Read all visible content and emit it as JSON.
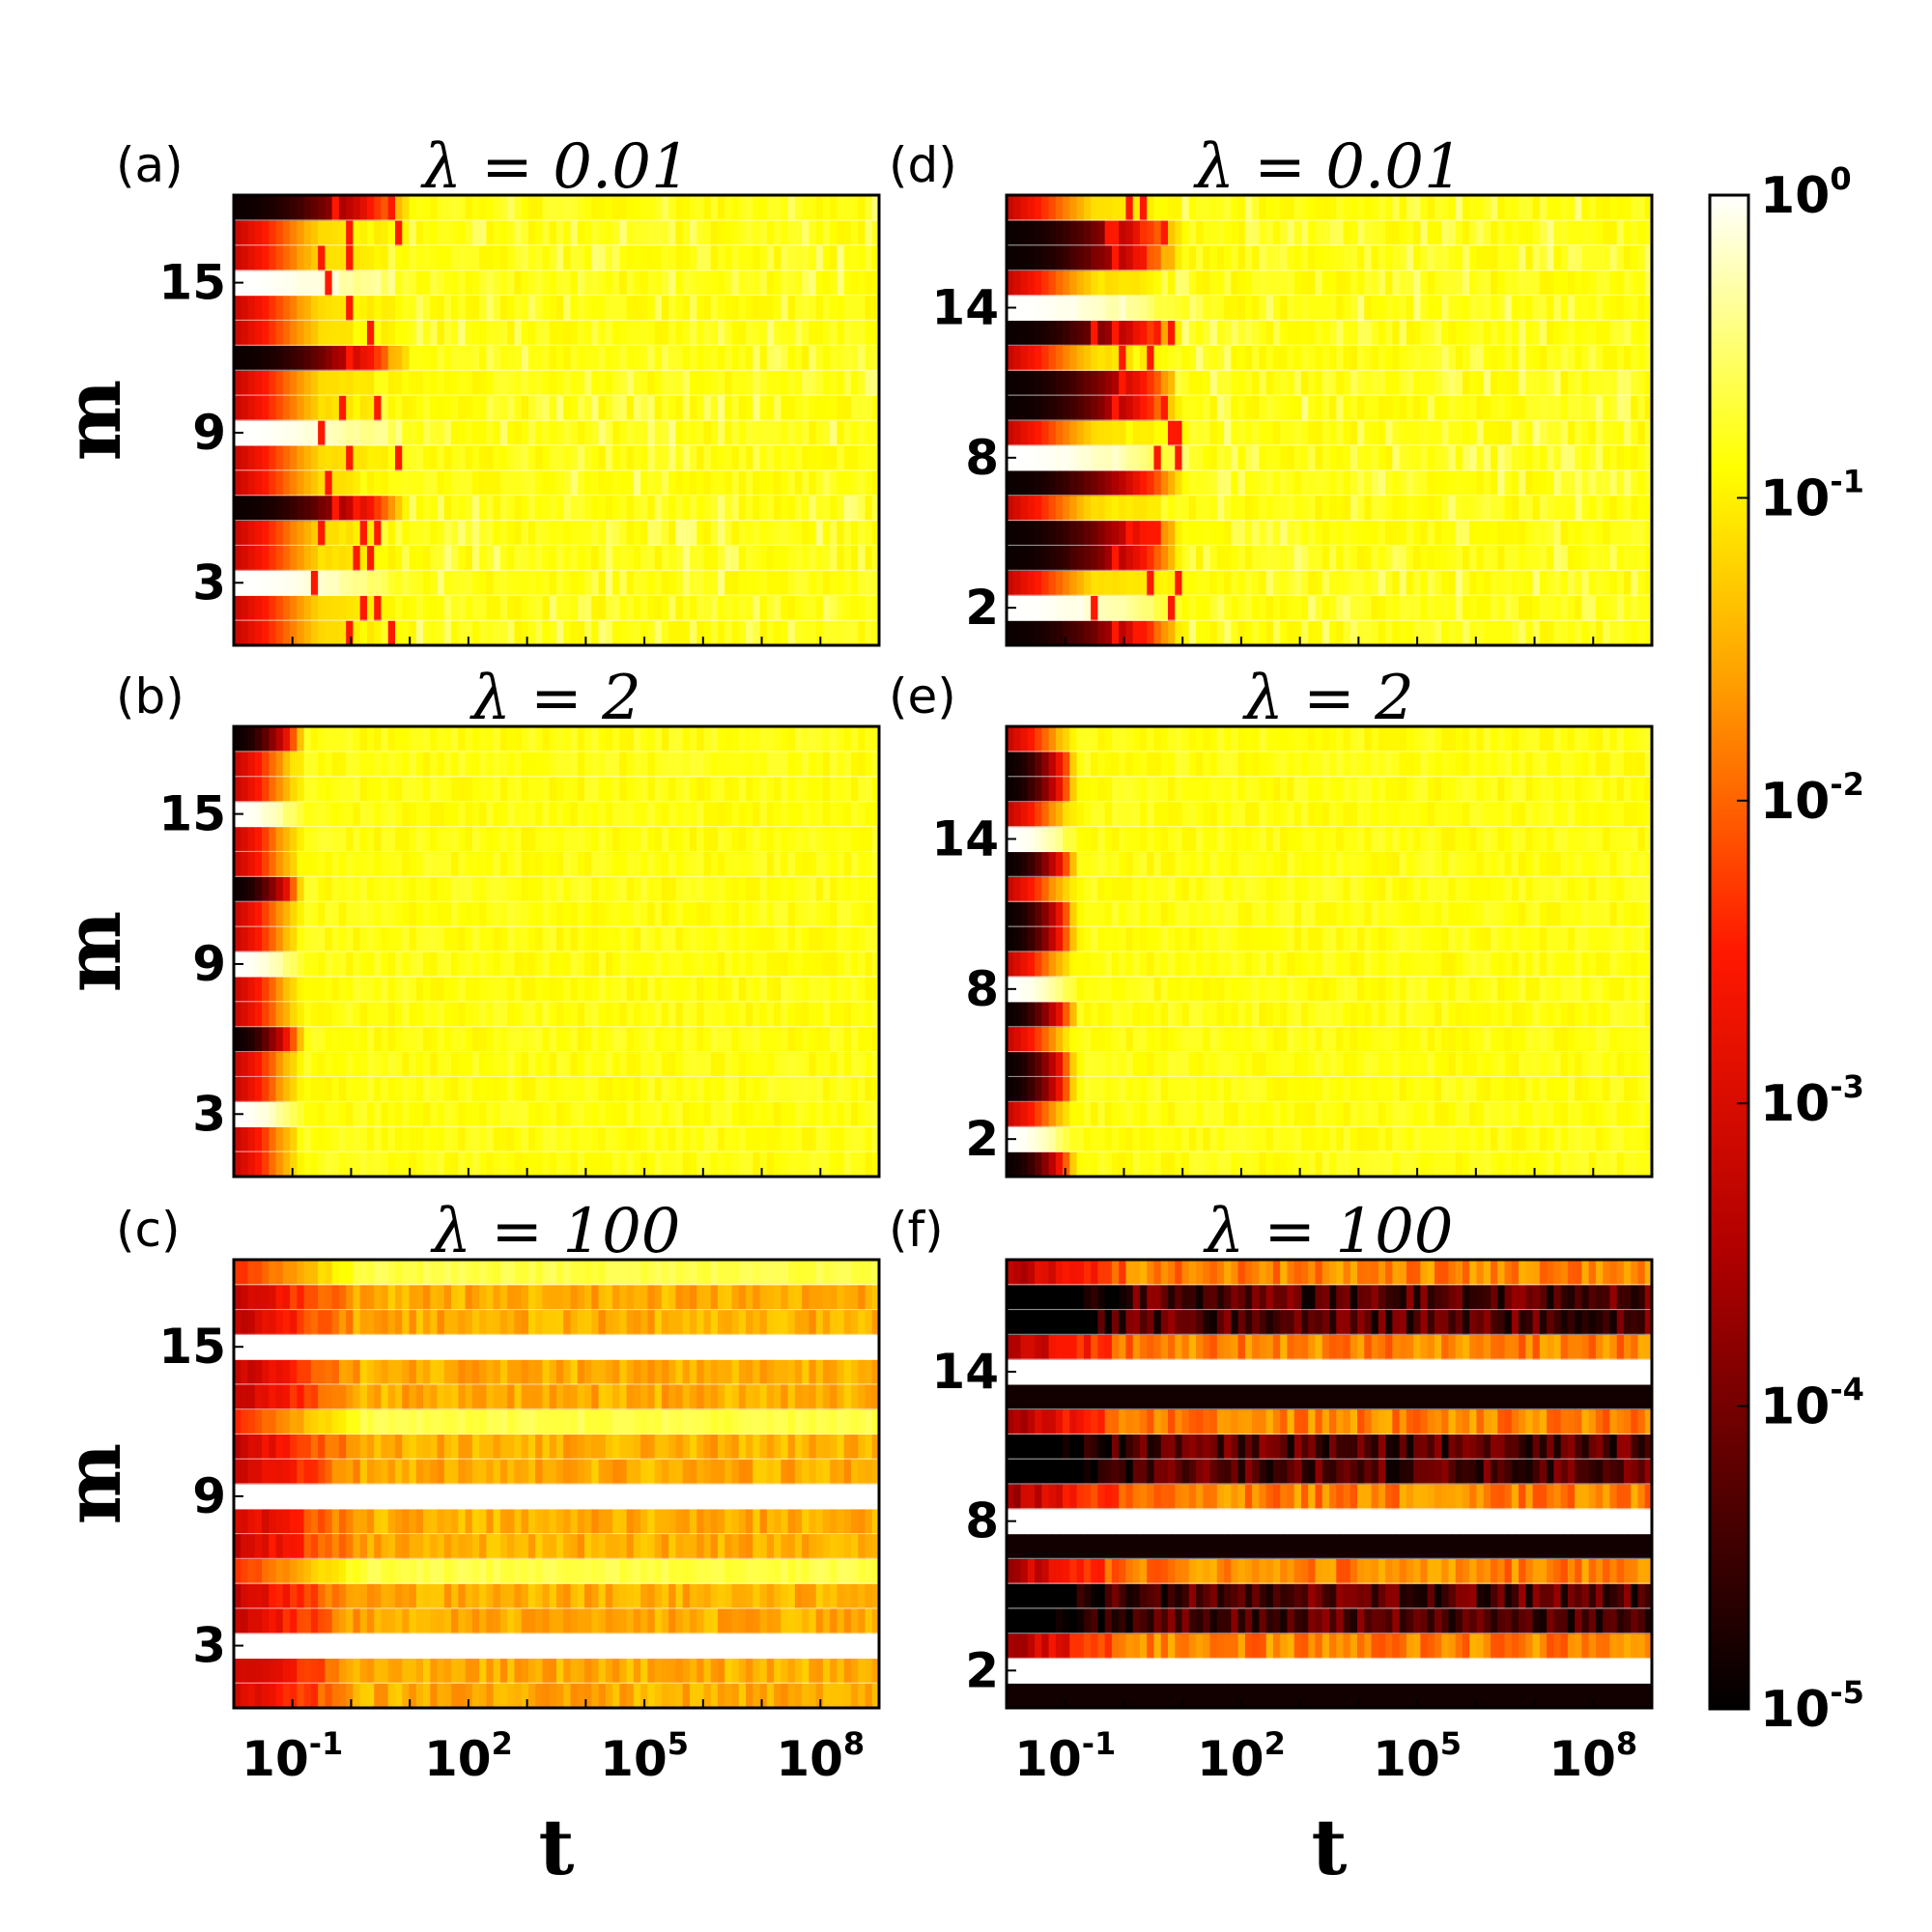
{
  "chart_data": [
    {
      "type": "heatmap",
      "panel": "(a)",
      "title": "λ = 0.01",
      "lambda": 0.01,
      "xlabel": "t",
      "ylabel": "m",
      "x_scale": "log",
      "x_range": [
        0.01,
        1000000000
      ],
      "x_ticks": [
        {
          "base": "10",
          "exp": "-1"
        },
        {
          "base": "10",
          "exp": "2"
        },
        {
          "base": "10",
          "exp": "5"
        },
        {
          "base": "10",
          "exp": "8"
        }
      ],
      "x_ticks_shown": false,
      "m_range": [
        1,
        18
      ],
      "y_ticks": [
        "15",
        "9",
        "3"
      ],
      "early_rows": {
        "dark": [
          6,
          12,
          18
        ],
        "white": [
          3,
          9,
          15
        ]
      },
      "transient_end_decades": 3,
      "late_state": "uniform yellow ~10^-1 with flickering columns"
    },
    {
      "type": "heatmap",
      "panel": "(b)",
      "title": "λ = 2",
      "lambda": 2,
      "xlabel": "t",
      "ylabel": "m",
      "x_scale": "log",
      "x_range": [
        0.01,
        1000000000
      ],
      "x_ticks_shown": false,
      "m_range": [
        1,
        18
      ],
      "y_ticks": [
        "15",
        "9",
        "3"
      ],
      "early_rows": {
        "dark": [
          6,
          12,
          18
        ],
        "white": [
          3,
          9,
          15
        ]
      },
      "transient_end_decades": 1.2,
      "late_state": "uniform pale yellow ~10^-1"
    },
    {
      "type": "heatmap",
      "panel": "(c)",
      "title": "λ = 100",
      "lambda": 100,
      "xlabel": "t",
      "ylabel": "m",
      "x_scale": "log",
      "x_range": [
        0.01,
        1000000000
      ],
      "x_ticks": [
        {
          "base": "10",
          "exp": "-1"
        },
        {
          "base": "10",
          "exp": "2"
        },
        {
          "base": "10",
          "exp": "5"
        },
        {
          "base": "10",
          "exp": "8"
        }
      ],
      "x_ticks_shown": true,
      "m_range": [
        1,
        18
      ],
      "y_ticks": [
        "15",
        "9",
        "3"
      ],
      "late_state": "persistent horizontal bands (white, light yellow, orange)"
    },
    {
      "type": "heatmap",
      "panel": "(d)",
      "title": "λ = 0.01",
      "lambda": 0.01,
      "xlabel": "t",
      "ylabel": "m",
      "x_scale": "log",
      "x_range": [
        0.01,
        1000000000
      ],
      "x_ticks_shown": false,
      "m_range": [
        1,
        18
      ],
      "y_ticks": [
        "14",
        "8",
        "2"
      ],
      "early_rows": {
        "dark": [
          1,
          4,
          5,
          7,
          10,
          11,
          13,
          16,
          17
        ],
        "white": [
          2,
          8,
          14
        ]
      },
      "transient_end_decades": 3,
      "late_state": "uniform yellow ~10^-1 with flickering columns"
    },
    {
      "type": "heatmap",
      "panel": "(e)",
      "title": "λ = 2",
      "lambda": 2,
      "xlabel": "t",
      "ylabel": "m",
      "x_scale": "log",
      "x_range": [
        0.01,
        1000000000
      ],
      "x_ticks_shown": false,
      "m_range": [
        1,
        18
      ],
      "y_ticks": [
        "14",
        "8",
        "2"
      ],
      "early_rows": {
        "dark": [
          1,
          4,
          5,
          7,
          10,
          11,
          13,
          16,
          17
        ],
        "white": [
          2,
          8,
          14
        ]
      },
      "transient_end_decades": 1.2,
      "late_state": "uniform pale yellow ~10^-1"
    },
    {
      "type": "heatmap",
      "panel": "(f)",
      "title": "λ = 100",
      "lambda": 100,
      "xlabel": "t",
      "ylabel": "m",
      "x_scale": "log",
      "x_range": [
        0.01,
        1000000000
      ],
      "x_ticks": [
        {
          "base": "10",
          "exp": "-1"
        },
        {
          "base": "10",
          "exp": "2"
        },
        {
          "base": "10",
          "exp": "5"
        },
        {
          "base": "10",
          "exp": "8"
        }
      ],
      "x_ticks_shown": true,
      "m_range": [
        1,
        18
      ],
      "y_ticks": [
        "14",
        "8",
        "2"
      ],
      "late_state": "persistent horizontal bands (white, black, orange/red)"
    }
  ],
  "colorbar": {
    "scale": "log",
    "range": [
      1e-05,
      1
    ],
    "colormap": "hot",
    "colors": [
      "#000000",
      "#ff0000",
      "#ffff00",
      "#ffffff"
    ],
    "ticks": [
      {
        "base": "10",
        "exp": "0"
      },
      {
        "base": "10",
        "exp": "-1"
      },
      {
        "base": "10",
        "exp": "-2"
      },
      {
        "base": "10",
        "exp": "-3"
      },
      {
        "base": "10",
        "exp": "-4"
      },
      {
        "base": "10",
        "exp": "-5"
      }
    ]
  }
}
